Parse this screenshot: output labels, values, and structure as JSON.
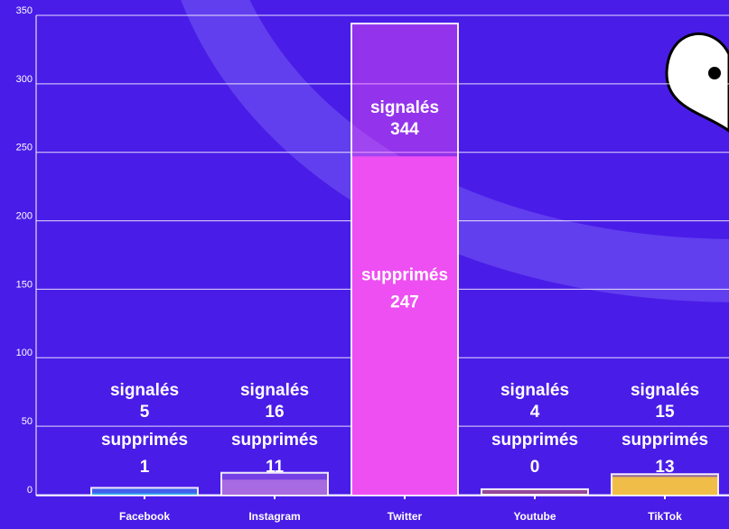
{
  "chart_data": {
    "type": "bar",
    "categories": [
      "Facebook",
      "Instagram",
      "Twitter",
      "Youtube",
      "TikTok"
    ],
    "series": [
      {
        "name": "signalés",
        "values": [
          5,
          16,
          344,
          4,
          15
        ]
      },
      {
        "name": "supprimés",
        "values": [
          1,
          11,
          247,
          0,
          13
        ]
      }
    ],
    "colors": [
      "#36b2f2",
      "#a86ae0",
      "#ee4ff2",
      "#f2803a",
      "#f0be48"
    ],
    "ylim": [
      0,
      350
    ],
    "yticks": [
      0,
      50,
      100,
      150,
      200,
      250,
      300,
      350
    ],
    "grid": true
  }
}
